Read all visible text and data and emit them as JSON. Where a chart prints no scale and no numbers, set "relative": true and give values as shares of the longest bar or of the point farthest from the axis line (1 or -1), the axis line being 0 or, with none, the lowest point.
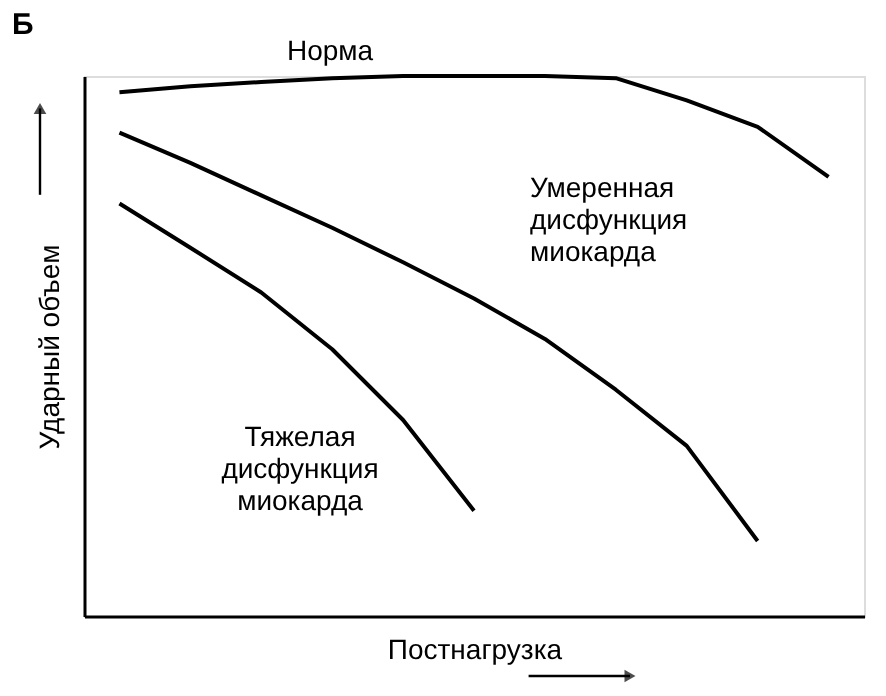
{
  "chart_data": {
    "type": "line",
    "title": "Б",
    "xlabel": "Постнагрузка",
    "ylabel": "Ударный объем",
    "relative": true,
    "grid": false,
    "marker": "none",
    "line_style": "solid",
    "categories": [
      null,
      null,
      null,
      null,
      null,
      null,
      null,
      null,
      null,
      null,
      null
    ],
    "series": [
      {
        "name": "Норма",
        "color": "#000000",
        "values": [
          0.97,
          0.981,
          0.989,
          0.996,
          1.0,
          1.0,
          1.0,
          0.996,
          0.955,
          0.906,
          0.813
        ]
      },
      {
        "name": "Умеренная дисфункция миокарда",
        "color": "#000000",
        "values": [
          0.895,
          0.839,
          0.779,
          0.719,
          0.655,
          0.588,
          0.513,
          0.419,
          0.315,
          0.139,
          null
        ]
      },
      {
        "name": "Тяжелая дисфункция миокарда",
        "color": "#000000",
        "values": [
          0.764,
          0.682,
          0.599,
          0.494,
          0.363,
          0.195,
          null,
          null,
          null,
          null,
          null
        ]
      }
    ]
  }
}
